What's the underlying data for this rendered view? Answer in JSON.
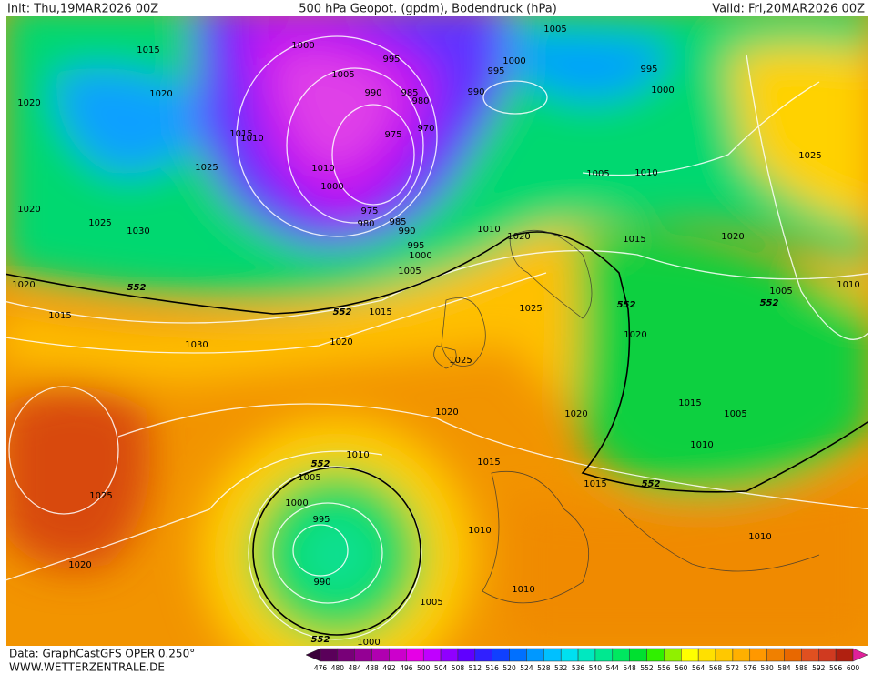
{
  "header": {
    "init": "Init: Thu,19MAR2026 00Z",
    "title": "500 hPa Geopot. (gpdm), Bodendruck (hPa)",
    "valid": "Valid: Fri,20MAR2026 00Z"
  },
  "isobar_labels": [
    1015,
    1000,
    995,
    1005,
    1000,
    995,
    995,
    1020,
    1020,
    1005,
    990,
    985,
    980,
    1000,
    990,
    970,
    1015,
    1010,
    975,
    1025,
    1010,
    1005,
    1010,
    1025,
    1000,
    1020,
    1025,
    1030,
    975,
    980,
    985,
    990,
    1010,
    1020,
    995,
    1000,
    1015,
    1020,
    1005,
    1020,
    1005,
    1010,
    1015,
    1015,
    1025,
    1030,
    1020,
    1020,
    1025,
    1015,
    1005,
    1020,
    1020,
    1010,
    1010,
    1015,
    1005,
    1025,
    1015,
    1000,
    995,
    1010,
    1010,
    1020,
    990,
    1010,
    1005,
    1000
  ],
  "geopotential_labels": [
    552,
    552,
    552,
    552,
    552,
    552,
    552
  ],
  "colorbar": {
    "values": [
      476,
      480,
      484,
      488,
      492,
      496,
      500,
      504,
      508,
      512,
      516,
      520,
      524,
      528,
      532,
      536,
      540,
      544,
      548,
      552,
      556,
      560,
      564,
      568,
      572,
      576,
      580,
      584,
      588,
      592,
      596,
      600
    ],
    "colors": [
      "#3a003a",
      "#5a005a",
      "#780078",
      "#940094",
      "#b000b0",
      "#cc00cc",
      "#e600e6",
      "#c000ff",
      "#9000ff",
      "#6000ff",
      "#3020ff",
      "#1040ff",
      "#0070ff",
      "#0098ff",
      "#00c0ff",
      "#00e0f0",
      "#00e8c0",
      "#00e890",
      "#00e860",
      "#00e030",
      "#30f000",
      "#90f000",
      "#ffff00",
      "#ffe000",
      "#ffc800",
      "#ffb000",
      "#ff9800",
      "#f08000",
      "#e86800",
      "#e05020",
      "#d03a20",
      "#b02010",
      "#e0209a"
    ]
  },
  "footer": {
    "data": "Data: GraphCastGFS OPER 0.250°",
    "site": "WWW.WETTERZENTRALE.DE"
  }
}
